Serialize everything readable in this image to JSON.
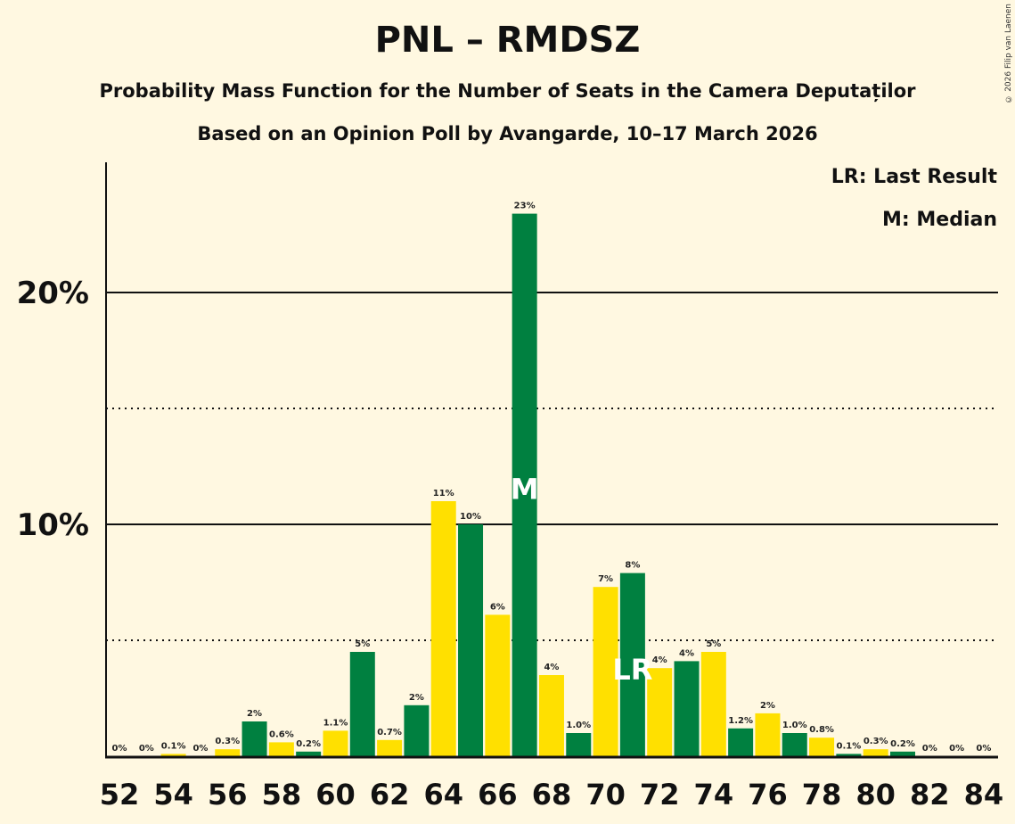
{
  "title": "PNL – RMDSZ",
  "subtitle1": "Probability Mass Function for the Number of Seats in the Camera Deputaților",
  "subtitle2": "Based on an Opinion Poll by Avangarde, 10–17 March 2026",
  "copyright": "© 2026 Filip van Laenen",
  "legend": {
    "lr": "LR: Last Result",
    "m": "M: Median"
  },
  "colors": {
    "green": "#008040",
    "yellow": "#ffe000"
  },
  "chart_data": {
    "type": "bar",
    "title": "PNL – RMDSZ",
    "x": [
      52,
      53,
      54,
      55,
      56,
      57,
      58,
      59,
      60,
      61,
      62,
      63,
      64,
      65,
      66,
      67,
      68,
      69,
      70,
      71,
      72,
      73,
      74,
      75,
      76,
      77,
      78,
      79,
      80,
      81,
      82,
      83,
      84
    ],
    "values": [
      0,
      0,
      0.1,
      0,
      0.3,
      1.5,
      0.6,
      0.2,
      1.1,
      4.5,
      0.7,
      2.2,
      11.0,
      10.0,
      6.1,
      23.4,
      3.5,
      1.0,
      7.3,
      7.9,
      3.8,
      4.1,
      4.5,
      1.2,
      1.85,
      1.0,
      0.8,
      0.1,
      0.3,
      0.2,
      0,
      0,
      0
    ],
    "labels": [
      "0%",
      "0%",
      "0.1%",
      "0%",
      "0.3%",
      "2%",
      "0.6%",
      "0.2%",
      "1.1%",
      "5%",
      "0.7%",
      "2%",
      "11%",
      "10%",
      "6%",
      "23%",
      "4%",
      "1.0%",
      "7%",
      "8%",
      "4%",
      "4%",
      "5%",
      "1.2%",
      "2%",
      "1.0%",
      "0.8%",
      "0.1%",
      "0.3%",
      "0.2%",
      "0%",
      "0%",
      "0%"
    ],
    "xticks": [
      "52",
      "54",
      "56",
      "58",
      "60",
      "62",
      "64",
      "66",
      "68",
      "70",
      "72",
      "74",
      "76",
      "78",
      "80",
      "82",
      "84"
    ],
    "yticks": [
      {
        "v": 10,
        "label": "10%"
      },
      {
        "v": 20,
        "label": "20%"
      }
    ],
    "dotted": [
      5,
      15
    ],
    "ylim": [
      0,
      25
    ],
    "median": 67,
    "median_label": "M",
    "last_result": 71,
    "last_result_label": "LR"
  }
}
